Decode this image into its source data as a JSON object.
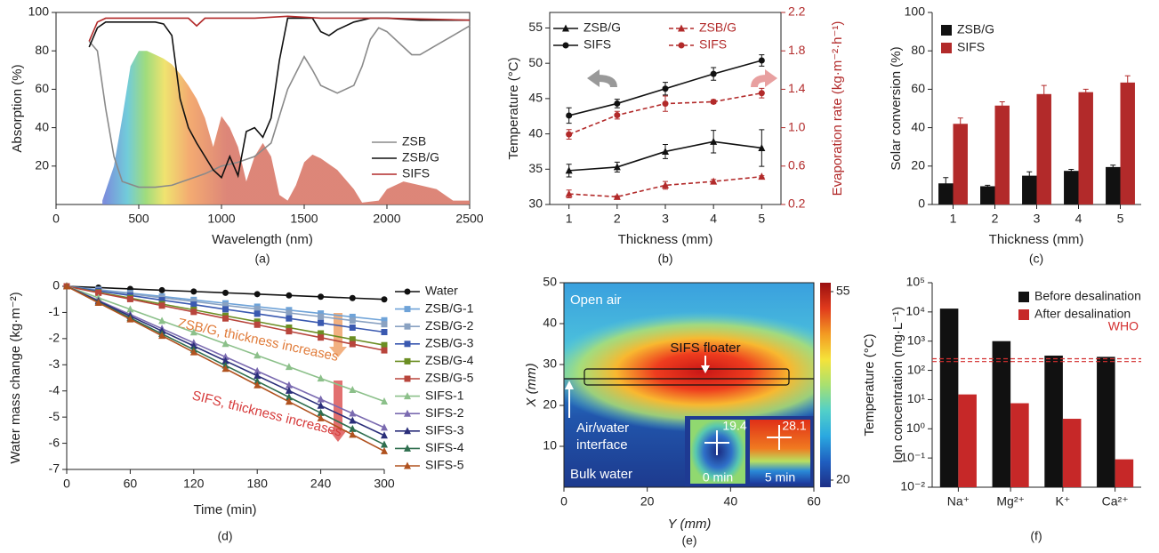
{
  "chart_data": [
    {
      "type": "line",
      "caption": "(a)",
      "xlabel": "Wavelength (nm)",
      "ylabel": "Absorption (%)",
      "xlim": [
        0,
        2500
      ],
      "xticks": [
        0,
        500,
        1000,
        1500,
        2000,
        2500
      ],
      "ylim": [
        0,
        100
      ],
      "yticks": [
        20,
        40,
        60,
        80,
        100
      ],
      "legend": "lower right",
      "area": {
        "color": "#d9796a",
        "x": [
          280,
          350,
          400,
          450,
          500,
          550,
          600,
          650,
          700,
          750,
          800,
          850,
          900,
          950,
          1000,
          1050,
          1100,
          1150,
          1200,
          1250,
          1300,
          1350,
          1400,
          1450,
          1500,
          1550,
          1600,
          1700,
          1800,
          1850,
          1950,
          2000,
          2100,
          2200,
          2300,
          2400,
          2500
        ],
        "values": [
          2,
          20,
          45,
          72,
          80,
          80,
          78,
          76,
          73,
          68,
          62,
          55,
          45,
          30,
          46,
          40,
          30,
          12,
          25,
          32,
          25,
          5,
          2,
          10,
          22,
          26,
          24,
          18,
          8,
          1,
          2,
          8,
          12,
          10,
          8,
          2,
          2
        ]
      },
      "series": [
        {
          "name": "ZSB",
          "color": "#8a8a8a",
          "x": [
            200,
            250,
            300,
            350,
            400,
            500,
            600,
            700,
            800,
            900,
            1000,
            1100,
            1200,
            1300,
            1400,
            1500,
            1550,
            1600,
            1700,
            1800,
            1850,
            1900,
            1950,
            2000,
            2100,
            2150,
            2200,
            2300,
            2400,
            2500
          ],
          "values": [
            85,
            80,
            50,
            25,
            12,
            9,
            9,
            10,
            13,
            16,
            20,
            22,
            25,
            32,
            60,
            77,
            70,
            62,
            58,
            62,
            72,
            86,
            92,
            90,
            82,
            78,
            78,
            83,
            88,
            93
          ]
        },
        {
          "name": "ZSB/G",
          "color": "#111111",
          "x": [
            200,
            250,
            300,
            400,
            500,
            600,
            650,
            700,
            750,
            800,
            850,
            900,
            950,
            1000,
            1050,
            1100,
            1150,
            1200,
            1250,
            1300,
            1350,
            1400,
            1450,
            1550,
            1600,
            1650,
            1700,
            1800,
            1900,
            2000,
            2200,
            2500
          ],
          "values": [
            82,
            92,
            95,
            95,
            95,
            95,
            94,
            88,
            55,
            40,
            32,
            25,
            18,
            14,
            25,
            15,
            38,
            40,
            35,
            45,
            75,
            97,
            97,
            97,
            90,
            88,
            91,
            95,
            97,
            97,
            96,
            96
          ]
        },
        {
          "name": "SIFS",
          "color": "#b22a2a",
          "x": [
            200,
            250,
            300,
            500,
            800,
            850,
            900,
            1200,
            1400,
            1600,
            2000,
            2500
          ],
          "values": [
            85,
            95,
            97,
            97,
            97,
            93,
            97,
            97,
            98,
            97,
            97,
            96
          ]
        }
      ]
    },
    {
      "type": "line",
      "caption": "(b)",
      "xlabel": "Thickness (mm)",
      "ylabel": "Temperature (°C)",
      "y2label": "Evaporation rate (kg·m⁻²·h⁻¹)",
      "xlim": [
        0.6,
        5.4
      ],
      "xticks": [
        1,
        2,
        3,
        4,
        5
      ],
      "ylim": [
        30,
        57.2
      ],
      "yticks": [
        30,
        35,
        40,
        45,
        50,
        55
      ],
      "y2lim": [
        0.2,
        2.2
      ],
      "y2ticks": [
        0.2,
        0.6,
        {
          "value": 1,
          "label": "1.0"
        },
        1.4,
        1.8,
        2.2
      ],
      "legend": "upper left",
      "x": [
        1,
        2,
        3,
        4,
        5
      ],
      "series": [
        {
          "name": "ZSB/G",
          "color": "#111111",
          "marker": "triangle",
          "values": [
            34.8,
            35.3,
            37.5,
            38.9,
            38.0
          ],
          "errors": [
            0.9,
            0.7,
            1.0,
            1.6,
            2.6
          ]
        },
        {
          "name": "SIFS",
          "color": "#111111",
          "marker": "circle",
          "values": [
            42.6,
            44.3,
            46.4,
            48.5,
            50.4
          ],
          "errors": [
            1.1,
            0.6,
            0.9,
            0.9,
            0.8
          ]
        },
        {
          "name": "ZSB/G",
          "color": "#b22a2a",
          "marker": "triangle",
          "dash": true,
          "axis": "y2",
          "values": [
            0.31,
            0.28,
            0.4,
            0.44,
            0.49
          ],
          "errors": [
            0.04,
            0.01,
            0.04,
            0.02,
            0.01
          ]
        },
        {
          "name": "SIFS",
          "color": "#b22a2a",
          "marker": "circle",
          "dash": true,
          "axis": "y2",
          "values": [
            0.93,
            1.13,
            1.25,
            1.27,
            1.36
          ],
          "errors": [
            0.05,
            0.04,
            0.08,
            0.02,
            0.05
          ]
        }
      ]
    },
    {
      "type": "bar",
      "caption": "(c)",
      "xlabel": "Thickness (mm)",
      "ylabel": "Solar conversion (%)",
      "categories": [
        "1",
        "2",
        "3",
        "4",
        "5"
      ],
      "ylim": [
        0,
        100
      ],
      "yticks": [
        0,
        20,
        40,
        60,
        80,
        100
      ],
      "legend": "upper left",
      "series": [
        {
          "name": "ZSB/G",
          "color": "#111111",
          "values": [
            11,
            9.5,
            15,
            17.5,
            19.5
          ],
          "errors": [
            3,
            0.5,
            2,
            0.8,
            1
          ]
        },
        {
          "name": "SIFS",
          "color": "#b22a2a",
          "values": [
            42,
            51.5,
            57.5,
            58.5,
            63.5
          ],
          "errors": [
            3,
            2,
            4.5,
            1.5,
            3.5
          ]
        }
      ]
    },
    {
      "type": "line",
      "caption": "(d)",
      "xlabel": "Time (min)",
      "ylabel": "Water mass change (kg·m⁻²)",
      "xlim": [
        0,
        300
      ],
      "xticks": [
        0,
        60,
        120,
        180,
        240,
        300
      ],
      "ylim": [
        -7,
        0
      ],
      "yticks": [
        0,
        -1,
        -2,
        -3,
        -4,
        -5,
        -6,
        -7
      ],
      "legend": "right",
      "annotations": [
        "ZSB/G, thickness increases",
        "SIFS, thickness increases"
      ],
      "x": [
        0,
        30,
        60,
        90,
        120,
        150,
        180,
        210,
        240,
        270,
        300
      ],
      "series": [
        {
          "name": "Water",
          "color": "#111111",
          "marker": "circle",
          "values": [
            0,
            -0.05,
            -0.1,
            -0.15,
            -0.2,
            -0.25,
            -0.3,
            -0.35,
            -0.4,
            -0.45,
            -0.5
          ]
        },
        {
          "name": "ZSB/G-1",
          "color": "#6fa3d8",
          "marker": "square",
          "values": [
            0,
            -0.13,
            -0.26,
            -0.39,
            -0.52,
            -0.65,
            -0.78,
            -0.91,
            -1.04,
            -1.17,
            -1.3
          ]
        },
        {
          "name": "ZSB/G-2",
          "color": "#8aa2c2",
          "marker": "square",
          "values": [
            0,
            -0.15,
            -0.29,
            -0.44,
            -0.58,
            -0.73,
            -0.87,
            -1.02,
            -1.16,
            -1.31,
            -1.45
          ]
        },
        {
          "name": "ZSB/G-3",
          "color": "#3a59b0",
          "marker": "square",
          "values": [
            0,
            -0.18,
            -0.35,
            -0.53,
            -0.7,
            -0.88,
            -1.05,
            -1.23,
            -1.4,
            -1.58,
            -1.75
          ]
        },
        {
          "name": "ZSB/G-4",
          "color": "#6b8e23",
          "marker": "square",
          "values": [
            0,
            -0.23,
            -0.45,
            -0.68,
            -0.9,
            -1.13,
            -1.35,
            -1.58,
            -1.8,
            -2.03,
            -2.25
          ]
        },
        {
          "name": "ZSB/G-5",
          "color": "#b8453c",
          "marker": "square",
          "values": [
            0,
            -0.25,
            -0.49,
            -0.74,
            -0.98,
            -1.23,
            -1.47,
            -1.72,
            -1.96,
            -2.21,
            -2.45
          ]
        },
        {
          "name": "SIFS-1",
          "color": "#8cc08a",
          "marker": "triangle",
          "values": [
            0,
            -0.44,
            -0.88,
            -1.32,
            -1.76,
            -2.2,
            -2.64,
            -3.08,
            -3.52,
            -3.96,
            -4.4
          ]
        },
        {
          "name": "SIFS-2",
          "color": "#7a6ab0",
          "marker": "triangle",
          "values": [
            0,
            -0.54,
            -1.08,
            -1.62,
            -2.16,
            -2.7,
            -3.24,
            -3.78,
            -4.32,
            -4.86,
            -5.4
          ]
        },
        {
          "name": "SIFS-3",
          "color": "#2b2f7a",
          "marker": "triangle",
          "values": [
            0,
            -0.57,
            -1.14,
            -1.71,
            -2.28,
            -2.85,
            -3.42,
            -3.99,
            -4.56,
            -5.13,
            -5.7
          ]
        },
        {
          "name": "SIFS-4",
          "color": "#2e6e4e",
          "marker": "triangle",
          "values": [
            0,
            -0.61,
            -1.21,
            -1.82,
            -2.42,
            -3.03,
            -3.63,
            -4.24,
            -4.84,
            -5.45,
            -6.05
          ]
        },
        {
          "name": "SIFS-5",
          "color": "#b0521f",
          "marker": "triangle",
          "values": [
            0,
            -0.63,
            -1.26,
            -1.89,
            -2.52,
            -3.15,
            -3.78,
            -4.41,
            -5.04,
            -5.67,
            -6.3
          ]
        }
      ]
    },
    {
      "type": "heatmap",
      "caption": "(e)",
      "xlabel": "Y (mm)",
      "ylabel": "X (mm)",
      "xlim": [
        0,
        60
      ],
      "xticks": [
        0,
        20,
        40,
        60
      ],
      "ylim": [
        0,
        50
      ],
      "yticks": [
        10,
        20,
        30,
        40,
        50
      ],
      "clim": [
        20,
        55
      ],
      "cticks": [
        20,
        55
      ],
      "colorbar_label": "Temperature (°C)",
      "colormap": [
        "#1d2f86",
        "#1f5fc0",
        "#2aa8e0",
        "#52d0c8",
        "#a8e070",
        "#f5e33a",
        "#f39a22",
        "#e03a1c",
        "#9a1010"
      ],
      "annotations": [
        "Open air",
        "SIFS floater",
        "Air/water",
        "interface",
        "Bulk water",
        "19.4",
        "28.1",
        "0 min",
        "5 min"
      ]
    },
    {
      "type": "bar",
      "caption": "(f)",
      "ylabel": "Ion concentration (mg·L⁻¹)",
      "categories": [
        "Na⁺",
        "Mg²⁺",
        "K⁺",
        "Ca²⁺"
      ],
      "ylog": true,
      "ylim": [
        0.01,
        100000
      ],
      "yticks": [
        {
          "value": 0.01,
          "label": "10⁻²"
        },
        {
          "value": 0.1,
          "label": "10⁻¹"
        },
        {
          "value": 1,
          "label": "10⁰"
        },
        {
          "value": 10,
          "label": "10¹"
        },
        {
          "value": 100,
          "label": "10²"
        },
        {
          "value": 1000,
          "label": "10³"
        },
        {
          "value": 10000,
          "label": "10⁴"
        },
        {
          "value": 100000,
          "label": "10⁵"
        }
      ],
      "legend": "upper right",
      "hlines": [
        200,
        250
      ],
      "hline_color": "#d32f2f",
      "annotations": [
        "WHO"
      ],
      "series": [
        {
          "name": "Before desalination",
          "color": "#111111",
          "values": [
            13000,
            1000,
            320,
            290
          ]
        },
        {
          "name": "After desalination",
          "color": "#c62828",
          "values": [
            15,
            7.5,
            2.2,
            0.09
          ]
        }
      ]
    }
  ]
}
